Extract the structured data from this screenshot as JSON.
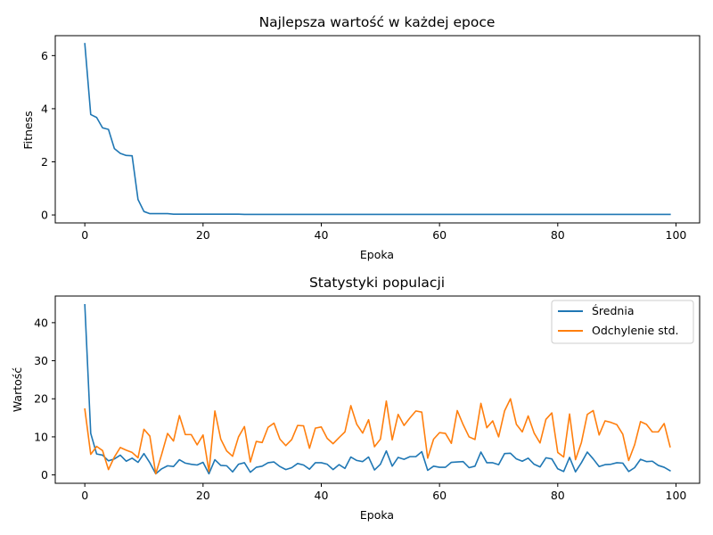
{
  "chart_data": [
    {
      "type": "line",
      "title": "Najlepsza wartość w każdej epoce",
      "xlabel": "Epoka",
      "ylabel": "Fitness",
      "xlim": [
        -5,
        104
      ],
      "ylim": [
        -0.3,
        6.75
      ],
      "xticks": [
        0,
        20,
        40,
        60,
        80,
        100
      ],
      "yticks": [
        0,
        2,
        4,
        6
      ],
      "grid": false,
      "series": [
        {
          "color": "#1f77b4",
          "x_start": 0,
          "values": [
            6.45,
            3.78,
            3.67,
            3.28,
            3.22,
            2.5,
            2.32,
            2.24,
            2.23,
            0.58,
            0.13,
            0.05,
            0.05,
            0.05,
            0.05,
            0.03,
            0.03,
            0.03,
            0.03,
            0.03,
            0.03,
            0.03,
            0.03,
            0.03,
            0.03,
            0.03,
            0.03,
            0.02,
            0.02,
            0.02,
            0.02,
            0.02,
            0.02,
            0.02,
            0.02,
            0.02,
            0.02,
            0.02,
            0.02,
            0.02,
            0.02,
            0.02,
            0.02,
            0.02,
            0.02,
            0.02,
            0.02,
            0.02,
            0.02,
            0.02,
            0.02,
            0.02,
            0.02,
            0.02,
            0.02,
            0.02,
            0.02,
            0.02,
            0.02,
            0.02,
            0.02,
            0.02,
            0.02,
            0.02,
            0.02,
            0.02,
            0.02,
            0.02,
            0.02,
            0.02,
            0.02,
            0.02,
            0.02,
            0.02,
            0.02,
            0.02,
            0.02,
            0.02,
            0.02,
            0.02,
            0.02,
            0.02,
            0.02,
            0.02,
            0.02,
            0.02,
            0.02,
            0.02,
            0.02,
            0.02,
            0.02,
            0.02,
            0.02,
            0.02,
            0.02,
            0.02,
            0.02,
            0.02,
            0.02,
            0.02
          ]
        }
      ]
    },
    {
      "type": "line",
      "title": "Statystyki populacji",
      "xlabel": "Epoka",
      "ylabel": "Wartość",
      "xlim": [
        -5,
        104
      ],
      "ylim": [
        -2.2,
        47
      ],
      "xticks": [
        0,
        20,
        40,
        60,
        80,
        100
      ],
      "yticks": [
        0,
        10,
        20,
        30,
        40
      ],
      "grid": false,
      "legend": "top-right",
      "series": [
        {
          "name": "Średnia",
          "color": "#1f77b4",
          "x_start": 0,
          "values": [
            44.7,
            10.9,
            5.5,
            5.2,
            3.7,
            4.2,
            5.2,
            3.6,
            4.4,
            3.3,
            5.6,
            3.2,
            0.3,
            1.6,
            2.4,
            2.2,
            4.0,
            3.1,
            2.8,
            2.6,
            3.3,
            0.3,
            4.0,
            2.5,
            2.4,
            0.8,
            2.8,
            3.2,
            0.7,
            2.0,
            2.3,
            3.2,
            3.4,
            2.2,
            1.4,
            1.9,
            3.0,
            2.6,
            1.5,
            3.2,
            3.2,
            2.8,
            1.4,
            2.7,
            1.7,
            4.7,
            3.8,
            3.5,
            4.7,
            1.3,
            2.8,
            6.3,
            2.3,
            4.6,
            4.1,
            4.8,
            4.8,
            6.1,
            1.2,
            2.3,
            2.0,
            2.0,
            3.3,
            3.4,
            3.5,
            1.9,
            2.3,
            6.0,
            3.2,
            3.2,
            2.7,
            5.6,
            5.7,
            4.2,
            3.6,
            4.4,
            2.8,
            2.1,
            4.5,
            4.2,
            1.6,
            0.9,
            4.6,
            0.8,
            3.2,
            6.0,
            4.2,
            2.2,
            2.7,
            2.8,
            3.2,
            3.1,
            0.9,
            1.9,
            4.1,
            3.5,
            3.6,
            2.5,
            2.0,
            1.1
          ]
        },
        {
          "name": "Odchylenie std.",
          "color": "#ff7f0e",
          "x_start": 0,
          "values": [
            17.3,
            5.4,
            7.5,
            6.4,
            1.4,
            4.7,
            7.2,
            6.5,
            5.9,
            4.5,
            12.0,
            10.2,
            0.3,
            5.4,
            10.9,
            8.9,
            15.6,
            10.6,
            10.6,
            7.9,
            10.5,
            0.9,
            16.8,
            9.4,
            6.3,
            4.9,
            10.0,
            12.7,
            3.4,
            8.8,
            8.5,
            12.5,
            13.6,
            9.4,
            7.7,
            9.3,
            13.0,
            12.9,
            7.0,
            12.3,
            12.6,
            9.6,
            8.2,
            9.8,
            11.3,
            18.2,
            13.3,
            11.0,
            14.5,
            7.4,
            9.4,
            19.4,
            9.2,
            15.9,
            13.0,
            15.0,
            16.8,
            16.5,
            4.4,
            9.4,
            11.1,
            10.9,
            8.3,
            16.9,
            13.2,
            10.0,
            9.3,
            18.8,
            12.4,
            14.2,
            10.0,
            16.8,
            20.0,
            13.3,
            11.3,
            15.5,
            11.0,
            8.4,
            14.6,
            16.3,
            5.9,
            4.7,
            16.0,
            4.0,
            8.5,
            15.9,
            16.9,
            10.5,
            14.2,
            13.8,
            13.2,
            10.7,
            3.8,
            7.9,
            14.0,
            13.3,
            11.3,
            11.3,
            13.5,
            7.4
          ]
        }
      ]
    }
  ]
}
